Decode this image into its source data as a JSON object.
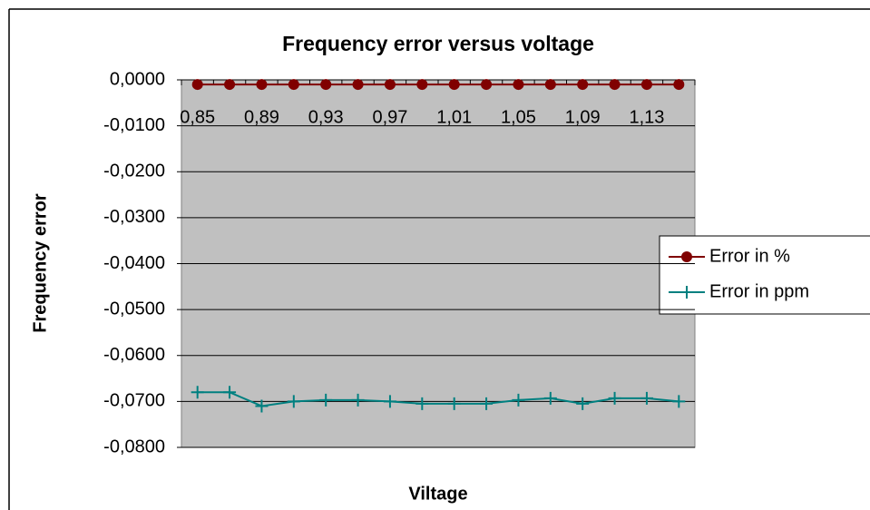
{
  "chart_data": {
    "type": "line",
    "title": "Frequency error versus voltage",
    "x_label": "Viltage",
    "y_label": "Frequency error",
    "categories": [
      "0,85",
      null,
      "0,89",
      null,
      "0,93",
      null,
      "0,97",
      null,
      "1,01",
      null,
      "1,05",
      null,
      "1,09",
      null,
      "1,13",
      null
    ],
    "series": [
      {
        "name": "Error in %",
        "color": "#800000",
        "marker": "circle",
        "values": [
          -0.001,
          -0.001,
          -0.001,
          -0.001,
          -0.001,
          -0.001,
          -0.001,
          -0.001,
          -0.001,
          -0.001,
          -0.001,
          -0.001,
          -0.001,
          -0.001,
          -0.001,
          -0.001
        ]
      },
      {
        "name": "Error in ppm",
        "color": "#008080",
        "marker": "plus",
        "values": [
          -0.068,
          -0.068,
          -0.071,
          -0.07,
          -0.0697,
          -0.0697,
          -0.07,
          -0.0705,
          -0.0705,
          -0.0705,
          -0.0697,
          -0.0693,
          -0.0705,
          -0.0693,
          -0.0693,
          -0.07
        ]
      }
    ],
    "ylim": [
      -0.08,
      0
    ],
    "yticks": [
      {
        "value": 0,
        "label": "0,0000"
      },
      {
        "value": -0.01,
        "label": "-0,0100"
      },
      {
        "value": -0.02,
        "label": "-0,0200"
      },
      {
        "value": -0.03,
        "label": "-0,0300"
      },
      {
        "value": -0.04,
        "label": "-0,0400"
      },
      {
        "value": -0.05,
        "label": "-0,0500"
      },
      {
        "value": -0.06,
        "label": "-0,0600"
      },
      {
        "value": -0.07,
        "label": "-0,0700"
      },
      {
        "value": -0.08,
        "label": "-0,0800"
      }
    ],
    "grid": true,
    "plot_background": "#c0c0c0",
    "legend": "right"
  }
}
